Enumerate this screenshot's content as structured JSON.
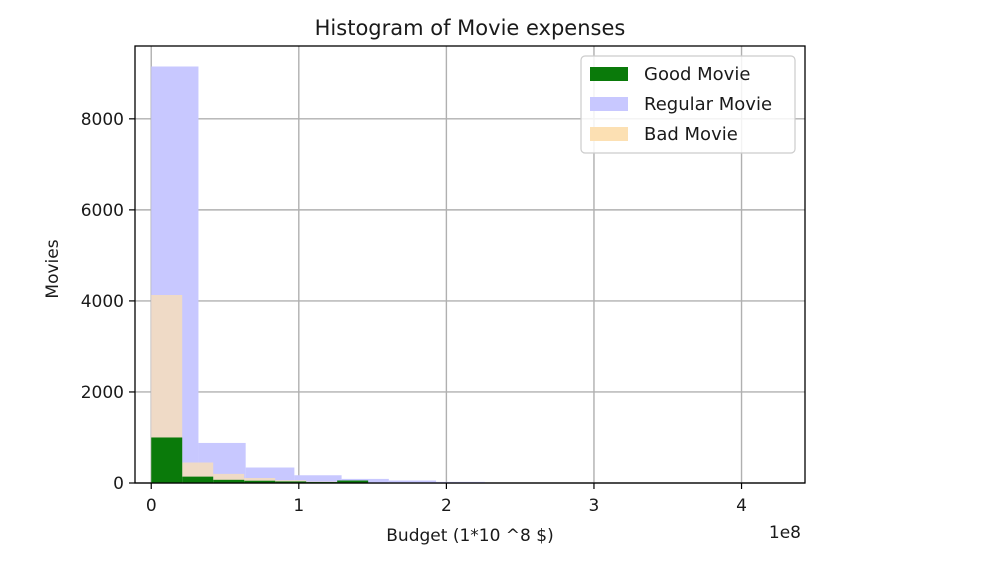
{
  "chart_data": {
    "type": "bar",
    "title": "Histogram of Movie expenses",
    "xlabel": "Budget (1*10 ^8 $)",
    "ylabel": "Movies",
    "x_offset_label": "1e8",
    "xlim": [
      -0.11,
      4.43
    ],
    "ylim": [
      0,
      9600
    ],
    "xticks": [
      0,
      1,
      2,
      3,
      4
    ],
    "xtick_labels": [
      "0",
      "1",
      "2",
      "3",
      "4"
    ],
    "yticks": [
      0,
      2000,
      4000,
      6000,
      8000
    ],
    "ytick_labels": [
      "0",
      "2000",
      "4000",
      "6000",
      "8000"
    ],
    "grid": true,
    "legend_position": "top-right",
    "series": [
      {
        "name": "Regular Movie",
        "color": "#c8c8ff",
        "bins": [
          {
            "x0": 0.0,
            "x1": 0.32,
            "count": 9150
          },
          {
            "x0": 0.32,
            "x1": 0.64,
            "count": 880
          },
          {
            "x0": 0.64,
            "x1": 0.97,
            "count": 340
          },
          {
            "x0": 0.97,
            "x1": 1.29,
            "count": 170
          },
          {
            "x0": 1.29,
            "x1": 1.61,
            "count": 90
          },
          {
            "x0": 1.61,
            "x1": 1.93,
            "count": 55
          },
          {
            "x0": 1.93,
            "x1": 2.26,
            "count": 25
          }
        ]
      },
      {
        "name": "Bad Movie",
        "color": "#fce0b3",
        "bins": [
          {
            "x0": 0.0,
            "x1": 0.21,
            "count": 4130
          },
          {
            "x0": 0.21,
            "x1": 0.42,
            "count": 450
          },
          {
            "x0": 0.42,
            "x1": 0.63,
            "count": 200
          },
          {
            "x0": 0.63,
            "x1": 0.84,
            "count": 110
          },
          {
            "x0": 0.84,
            "x1": 1.05,
            "count": 60
          },
          {
            "x0": 1.05,
            "x1": 1.26,
            "count": 30
          },
          {
            "x0": 1.26,
            "x1": 1.47,
            "count": 15
          }
        ]
      },
      {
        "name": "Good Movie",
        "color": "#0a7a0a",
        "bins": [
          {
            "x0": 0.0,
            "x1": 0.21,
            "count": 1000
          },
          {
            "x0": 0.21,
            "x1": 0.42,
            "count": 140
          },
          {
            "x0": 0.42,
            "x1": 0.63,
            "count": 70
          },
          {
            "x0": 0.63,
            "x1": 0.84,
            "count": 50
          },
          {
            "x0": 0.84,
            "x1": 1.05,
            "count": 35
          },
          {
            "x0": 1.05,
            "x1": 1.26,
            "count": 20
          },
          {
            "x0": 1.26,
            "x1": 1.47,
            "count": 55
          },
          {
            "x0": 1.47,
            "x1": 1.68,
            "count": 10
          }
        ]
      }
    ],
    "legend": [
      {
        "name": "Good Movie",
        "color": "#0a7a0a"
      },
      {
        "name": "Regular Movie",
        "color": "#c8c8ff"
      },
      {
        "name": "Bad Movie",
        "color": "#fce0b3"
      }
    ]
  }
}
